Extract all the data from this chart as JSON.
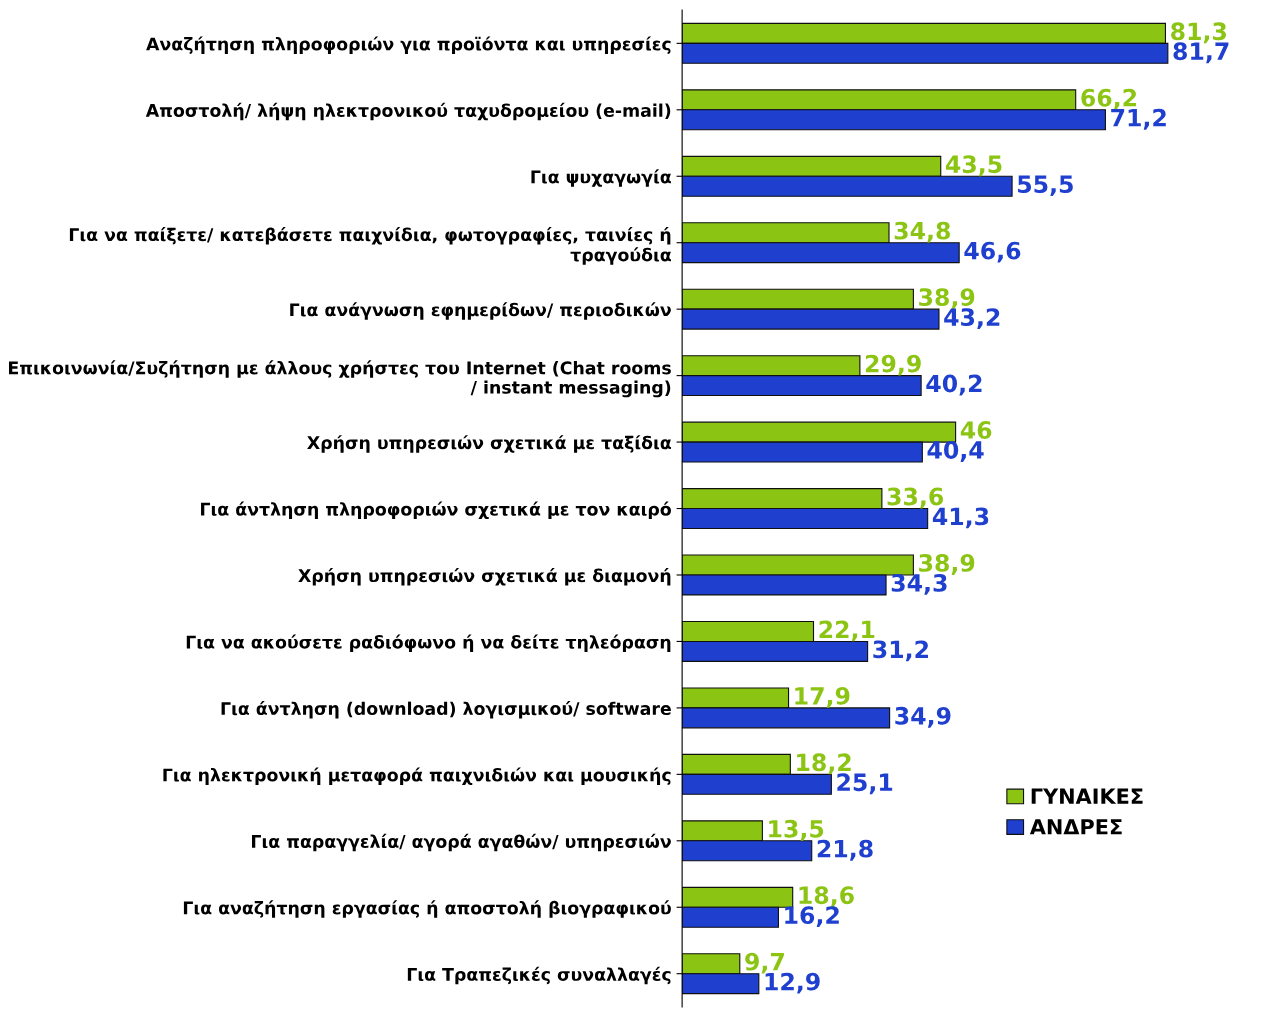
{
  "chart_data": {
    "type": "bar",
    "orientation": "horizontal",
    "categories": [
      "Αναζήτηση πληροφοριών για προϊόντα και υπηρεσίες",
      "Αποστολή/ λήψη ηλεκτρονικού ταχυδρομείου (e-mail)",
      "Για ψυχαγωγία",
      "Για να παίξετε/ κατεβάσετε παιχνίδια, φωτογραφίες, ταινίες ή\nτραγούδια",
      "Για ανάγνωση εφημερίδων/ περιοδικών",
      "Επικοινωνία/Συζήτηση με άλλους χρήστες του Internet (Chat rooms\n/ instant messaging)",
      "Χρήση υπηρεσιών σχετικά με ταξίδια",
      "Για άντληση πληροφοριών σχετικά με τον καιρό",
      "Χρήση υπηρεσιών σχετικά με διαμονή",
      "Για να ακούσετε ραδιόφωνο ή να δείτε τηλεόραση",
      "Για άντληση (download) λογισμικού/ software",
      "Για ηλεκτρονική μεταφορά παιχνιδιών και μουσικής",
      "Για παραγγελία/ αγορά αγαθών/ υπηρεσιών",
      "Για αναζήτηση εργασίας ή αποστολή βιογραφικού",
      "Για Τραπεζικές συναλλαγές"
    ],
    "series": [
      {
        "name": "ΓΥΝΑΙΚΕΣ",
        "color": "#8cc414",
        "values": [
          81.3,
          66.2,
          43.5,
          34.8,
          38.9,
          29.9,
          46,
          33.6,
          38.9,
          22.1,
          17.9,
          18.2,
          13.5,
          18.6,
          9.7
        ],
        "value_labels": [
          "81,3",
          "66,2",
          "43,5",
          "34,8",
          "38,9",
          "29,9",
          "46",
          "33,6",
          "38,9",
          "22,1",
          "17,9",
          "18,2",
          "13,5",
          "18,6",
          "9,7"
        ]
      },
      {
        "name": "ΑΝΔΡΕΣ",
        "color": "#1f3fcf",
        "values": [
          81.7,
          71.2,
          55.5,
          46.6,
          43.2,
          40.2,
          40.4,
          41.3,
          34.3,
          31.2,
          34.9,
          25.1,
          21.8,
          16.2,
          12.9
        ],
        "value_labels": [
          "81,7",
          "71,2",
          "55,5",
          "46,6",
          "43,2",
          "40,2",
          "40,4",
          "41,3",
          "34,3",
          "31,2",
          "34,9",
          "25,1",
          "21,8",
          "16,2",
          "12,9"
        ]
      }
    ],
    "tick_labels": "y",
    "legend": "right",
    "grid": false
  }
}
